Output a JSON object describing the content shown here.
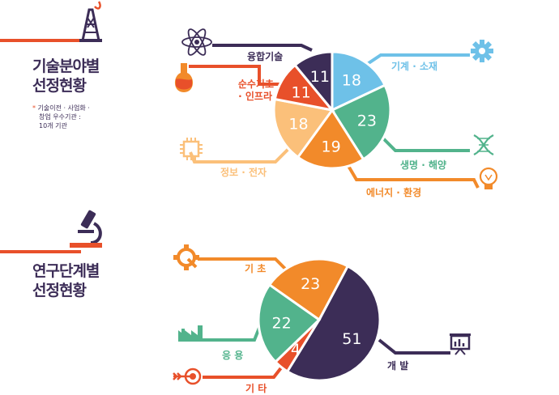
{
  "colors": {
    "orange": "#f28a2a",
    "red_orange": "#e8502a",
    "sky": "#6ec1e8",
    "green": "#52b38c",
    "light_orange": "#fbc07a",
    "purple": "#3c2d57"
  },
  "section1": {
    "title_line1": "기술분야별",
    "title_line2": "선정현황",
    "note_line1": "기술이전 · 사업화 ·",
    "note_line2": "창업 우수기관 :",
    "note_line3": "10개 기관"
  },
  "section2": {
    "title_line1": "연구단계별",
    "title_line2": "선정현황"
  },
  "icons": {
    "section1_header": "oil-rig-icon",
    "section2_header": "microscope-icon",
    "atom": "atom-icon",
    "flask": "flask-icon",
    "chip": "chip-icon",
    "gear": "gear-icon",
    "dna": "dna-icon",
    "bulb": "lightbulb-icon",
    "gear2": "gear-wrench-icon",
    "factory": "factory-icon",
    "target": "target-arrow-icon",
    "presentation": "presentation-board-icon"
  },
  "chart_data": [
    {
      "type": "pie",
      "values": [
        18,
        23,
        19,
        18,
        11,
        11
      ],
      "labels": [
        "기계 · 소재",
        "생명 · 해양",
        "에너지 · 환경",
        "정보 · 전자",
        "순수기초 · 인프라",
        "융합기술"
      ],
      "label_lines": [
        [
          "기계 · 소재"
        ],
        [
          "생명 · 해양"
        ],
        [
          "에너지 · 환경"
        ],
        [
          "정보 · 전자"
        ],
        [
          "순수기초",
          "· 인프라"
        ],
        [
          "융합기술"
        ]
      ],
      "colors": [
        "#6ec1e8",
        "#52b38c",
        "#f28a2a",
        "#fbc07a",
        "#e8502a",
        "#3c2d57"
      ]
    },
    {
      "type": "pie",
      "values": [
        51,
        4,
        22,
        23
      ],
      "labels": [
        "개 발",
        "기 타",
        "응 용",
        "기 초"
      ],
      "colors": [
        "#3c2d57",
        "#e8502a",
        "#52b38c",
        "#f28a2a"
      ]
    }
  ]
}
